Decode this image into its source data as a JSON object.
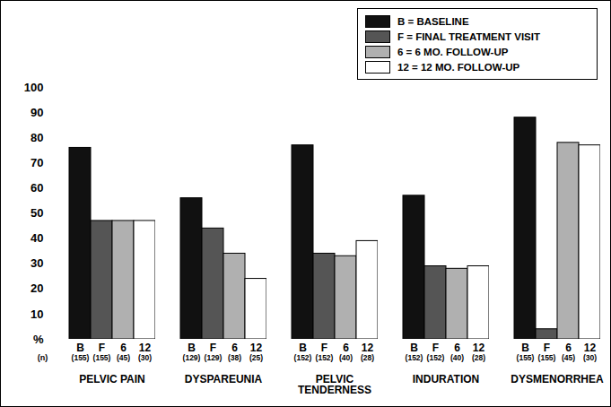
{
  "chart_data": {
    "type": "bar",
    "categories": [
      "PELVIC PAIN",
      "DYSPAREUNIA",
      "PELVIC TENDERNESS",
      "INDURATION",
      "DYSMENORRHEA"
    ],
    "series": [
      {
        "name": "B = BASELINE",
        "label": "B",
        "color": "#111111",
        "values": [
          76,
          56,
          77,
          57,
          88
        ],
        "n_labels": [
          "(155)",
          "(129)",
          "(152)",
          "(152)",
          "(155)"
        ]
      },
      {
        "name": "F = FINAL TREATMENT VISIT",
        "label": "F",
        "color": "#555555",
        "values": [
          47,
          44,
          34,
          29,
          4
        ],
        "n_labels": [
          "(155)",
          "(129)",
          "(152)",
          "(152)",
          "(155)"
        ]
      },
      {
        "name": "6 = 6 MO. FOLLOW-UP",
        "label": "6",
        "color": "#b0b0b0",
        "values": [
          47,
          34,
          33,
          28,
          78
        ],
        "n_labels": [
          "(45)",
          "(38)",
          "(40)",
          "(40)",
          "(45)"
        ]
      },
      {
        "name": "12 = 12 MO. FOLLOW-UP",
        "label": "12",
        "color": "#ffffff",
        "values": [
          47,
          24,
          39,
          29,
          77
        ],
        "n_labels": [
          "(30)",
          "(25)",
          "(28)",
          "(28)",
          "(30)"
        ]
      }
    ],
    "n_label": "(n)",
    "ylim": [
      0,
      100
    ],
    "yticks": [
      {
        "value": 0,
        "label": "%"
      },
      10,
      20,
      30,
      40,
      50,
      60,
      70,
      80,
      90,
      100
    ],
    "grid": false,
    "legend": "top-right"
  }
}
